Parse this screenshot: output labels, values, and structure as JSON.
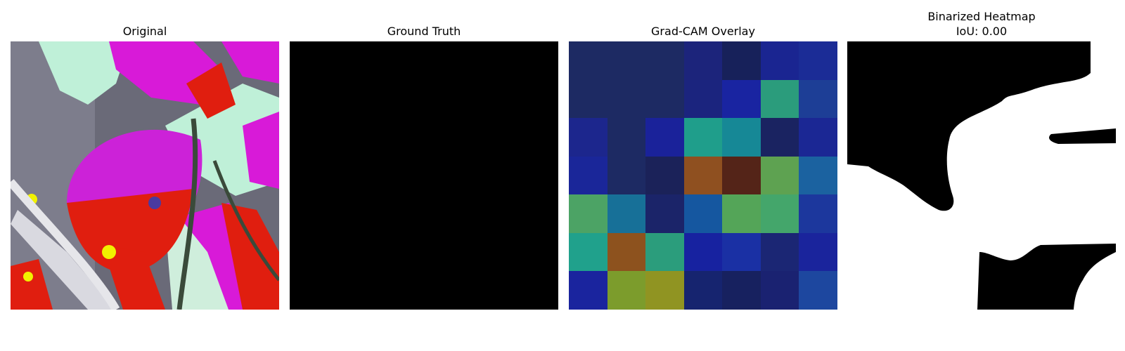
{
  "panels": {
    "original": {
      "title": "Original"
    },
    "ground_truth": {
      "title": "Ground Truth"
    },
    "gradcam": {
      "title": "Grad-CAM Overlay",
      "grid": [
        [
          "#1d2a63",
          "#1d2a63",
          "#1d2a63",
          "#1c247b",
          "#17215a",
          "#1a2591",
          "#1b2c96"
        ],
        [
          "#1d2a63",
          "#1d2a63",
          "#1d2a63",
          "#1b247e",
          "#1924a1",
          "#2b9c7c",
          "#1d3e96"
        ],
        [
          "#1c268d",
          "#1d2a63",
          "#1a229a",
          "#1f9e8b",
          "#168896",
          "#1a2361",
          "#1b2794"
        ],
        [
          "#1a2699",
          "#1d2a63",
          "#1b2259",
          "#8f5020",
          "#542418",
          "#5ea251",
          "#1b62a0"
        ],
        [
          "#4ca365",
          "#177098",
          "#1b2469",
          "#1557a0",
          "#54a558",
          "#44a66b",
          "#1c379d"
        ],
        [
          "#20a18c",
          "#8d521e",
          "#2b9d7c",
          "#1722a0",
          "#1a30a4",
          "#1b2674",
          "#1a249c"
        ],
        [
          "#1a249e",
          "#7c9c2c",
          "#909422",
          "#16246f",
          "#17215f",
          "#1a2271",
          "#1d479f"
        ]
      ]
    },
    "binarized": {
      "title_line1": "Binarized Heatmap",
      "title_line2": "IoU: 0.00"
    }
  },
  "colors": {
    "mask_white": "#ffffff",
    "mask_black": "#000000",
    "leaf_magenta": "#d81ad8",
    "leaf_red": "#e01e0f",
    "mint": "#bff0d8"
  }
}
